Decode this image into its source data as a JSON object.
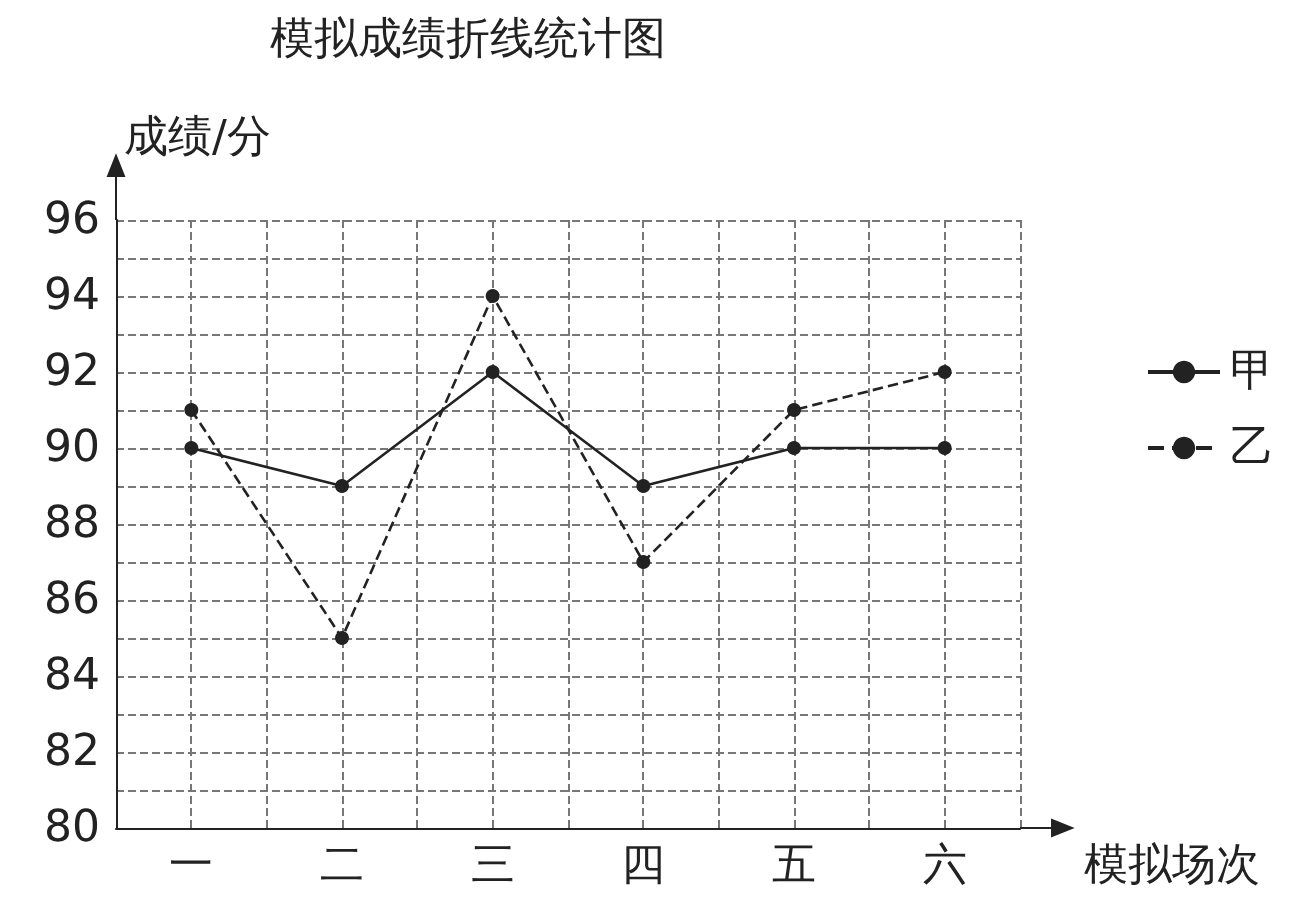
{
  "chart_data": {
    "type": "line",
    "title": "模拟成绩折线统计图",
    "xlabel": "模拟场次",
    "ylabel": "成绩/分",
    "categories": [
      "一",
      "二",
      "三",
      "四",
      "五",
      "六"
    ],
    "series": [
      {
        "name": "甲",
        "color": "#222222",
        "line_style": "solid",
        "values": [
          90,
          89,
          92,
          89,
          90,
          90
        ]
      },
      {
        "name": "乙",
        "color": "#222222",
        "line_style": "dashed",
        "values": [
          91,
          85,
          94,
          87,
          91,
          92
        ]
      }
    ],
    "ylim": [
      80,
      96
    ],
    "yticks": [
      80,
      82,
      84,
      86,
      88,
      90,
      92,
      94,
      96
    ],
    "grid": true,
    "legend": "right",
    "marker": "circle"
  }
}
